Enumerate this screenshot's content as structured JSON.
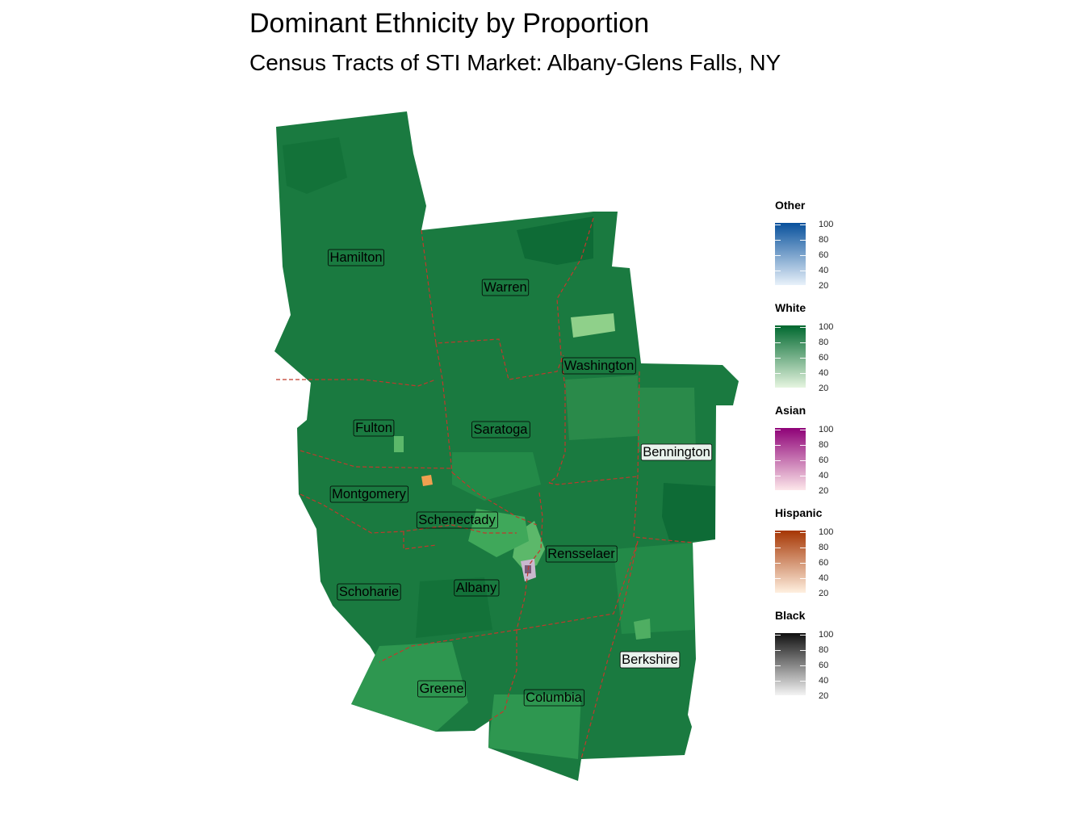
{
  "title": "Dominant Ethnicity by Proportion",
  "subtitle": "Census Tracts of STI Market: Albany-Glens Falls, NY",
  "counties": [
    {
      "name": "Hamilton"
    },
    {
      "name": "Warren"
    },
    {
      "name": "Washington"
    },
    {
      "name": "Fulton"
    },
    {
      "name": "Saratoga"
    },
    {
      "name": "Bennington"
    },
    {
      "name": "Montgomery"
    },
    {
      "name": "Schenectady"
    },
    {
      "name": "Rensselaer"
    },
    {
      "name": "Schoharie"
    },
    {
      "name": "Albany"
    },
    {
      "name": "Berkshire"
    },
    {
      "name": "Greene"
    },
    {
      "name": "Columbia"
    }
  ],
  "legend": [
    {
      "title": "Other",
      "color_low": "#e8f1fa",
      "color_high": "#08519c",
      "ticks": [
        "100",
        "80",
        "60",
        "40",
        "20"
      ]
    },
    {
      "title": "White",
      "color_low": "#e6f5e0",
      "color_high": "#00682f",
      "ticks": [
        "100",
        "80",
        "60",
        "40",
        "20"
      ]
    },
    {
      "title": "Asian",
      "color_low": "#fde7ea",
      "color_high": "#8e0177",
      "ticks": [
        "100",
        "80",
        "60",
        "40",
        "20"
      ]
    },
    {
      "title": "Hispanic",
      "color_low": "#fff0e0",
      "color_high": "#a63603",
      "ticks": [
        "100",
        "80",
        "60",
        "40",
        "20"
      ]
    },
    {
      "title": "Black",
      "color_low": "#f4f4f4",
      "color_high": "#111111",
      "ticks": [
        "100",
        "80",
        "60",
        "40",
        "20"
      ]
    }
  ],
  "colors": {
    "white_dominant": "#1a7a40",
    "white_dark": "#0e6b36",
    "white_light": "#2e9750",
    "white_pale": "#8fd08a",
    "county_border": "#c0392b"
  }
}
